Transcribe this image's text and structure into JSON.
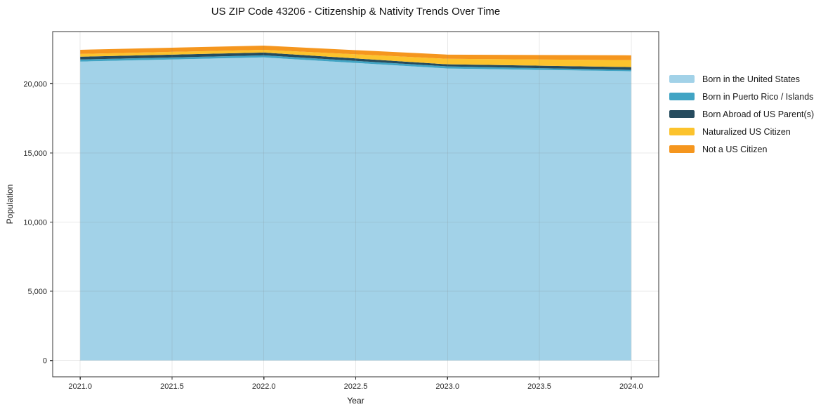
{
  "title": "US ZIP Code 43206 - Citizenship & Nativity Trends Over Time",
  "chart_data": {
    "type": "area",
    "stacked": true,
    "title": "US ZIP Code 43206 - Citizenship & Nativity Trends Over Time",
    "xlabel": "Year",
    "ylabel": "Population",
    "x": [
      2021,
      2022,
      2023,
      2024
    ],
    "series": [
      {
        "name": "Born in the United States",
        "color": "#A2D2E8",
        "values": [
          21600,
          21900,
          21100,
          20900
        ]
      },
      {
        "name": "Born in Puerto Rico / Islands",
        "color": "#41A4C4",
        "values": [
          150,
          150,
          150,
          100
        ]
      },
      {
        "name": "Born Abroad of US Parent(s)",
        "color": "#254B5E",
        "values": [
          200,
          200,
          150,
          200
        ]
      },
      {
        "name": "Naturalized US Citizen",
        "color": "#FCC32D",
        "values": [
          200,
          200,
          400,
          500
        ]
      },
      {
        "name": "Not a US Citizen",
        "color": "#F5961E",
        "values": [
          300,
          300,
          300,
          350
        ]
      }
    ],
    "stack_totals": [
      22450,
      22750,
      22100,
      22050
    ],
    "xlim": [
      2020.85,
      2024.15
    ],
    "ylim": [
      -1184,
      23766
    ],
    "x_ticks": [
      2021.0,
      2021.5,
      2022.0,
      2022.5,
      2023.0,
      2023.5,
      2024.0
    ],
    "x_tick_labels": [
      "2021.0",
      "2021.5",
      "2022.0",
      "2022.5",
      "2023.0",
      "2023.5",
      "2024.0"
    ],
    "y_ticks": [
      0,
      5000,
      10000,
      15000,
      20000
    ],
    "y_tick_labels": [
      "0",
      "5,000",
      "10,000",
      "15,000",
      "20,000"
    ],
    "grid": true,
    "legend_position": "right of plot"
  },
  "colors": {
    "background": "#FFFFFF",
    "grid": "#E9E9E9",
    "spine": "#333333",
    "tick": "#333333",
    "text": "#111111"
  }
}
